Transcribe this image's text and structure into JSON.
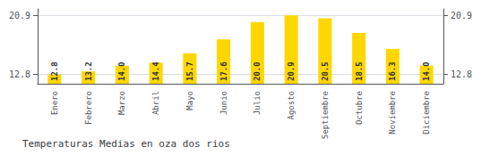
{
  "chart_data": {
    "type": "bar",
    "title": "Temperaturas Medias en oza dos rios",
    "categories": [
      "Enero",
      "Febrero",
      "Marzo",
      "Abril",
      "Mayo",
      "Junio",
      "Julio",
      "Agosto",
      "Septiembre",
      "Octubre",
      "Noviembre",
      "Diciembre"
    ],
    "values": [
      12.8,
      13.2,
      14.0,
      14.4,
      15.7,
      17.6,
      20.0,
      20.9,
      20.5,
      18.5,
      16.3,
      14.0
    ],
    "value_labels": [
      "12.8",
      "13.2",
      "14.0",
      "14.4",
      "15.7",
      "17.6",
      "20.0",
      "20.9",
      "20.5",
      "18.5",
      "16.3",
      "14.0"
    ],
    "color": "#FFD700",
    "ylim": [
      11.5,
      21.8
    ],
    "yticks": [
      12.8,
      20.9
    ],
    "y2lim": [
      11.5,
      21.8
    ],
    "y2ticks": [
      12.8,
      20.9
    ],
    "grid": true,
    "data_labels": true
  }
}
